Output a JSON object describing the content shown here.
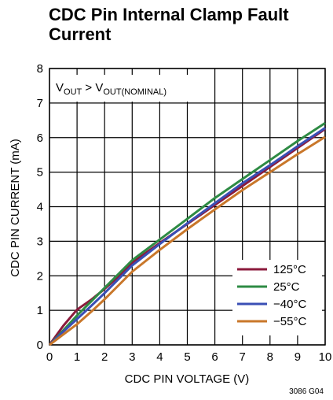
{
  "chart_data": {
    "type": "line",
    "title": "CDC Pin Internal Clamp Fault Current",
    "xlabel": "CDC PIN VOLTAGE (V)",
    "ylabel": "CDC PIN CURRENT (mA)",
    "xlim": [
      0,
      10
    ],
    "ylim": [
      0,
      8
    ],
    "xticks": [
      "0",
      "1",
      "2",
      "3",
      "4",
      "5",
      "6",
      "7",
      "8",
      "9",
      "10"
    ],
    "yticks": [
      "0",
      "1",
      "2",
      "3",
      "4",
      "5",
      "6",
      "7",
      "8"
    ],
    "grid": true,
    "legend_position": "bottom-right",
    "annotation": {
      "main": "V",
      "sub1": "OUT",
      "mid": " > V",
      "sub2": "OUT(NOMINAL)"
    },
    "figure_code": "3086 G04",
    "series": [
      {
        "name": "125°C",
        "color": "#8b1a3c",
        "x": [
          0,
          0.5,
          1,
          1.5,
          2,
          2.5,
          3,
          4,
          5,
          6,
          7,
          8,
          9,
          10
        ],
        "y": [
          0,
          0.55,
          1.02,
          1.3,
          1.62,
          1.98,
          2.38,
          2.95,
          3.5,
          4.05,
          4.6,
          5.15,
          5.7,
          6.25
        ]
      },
      {
        "name": "25°C",
        "color": "#2e8b44",
        "x": [
          0,
          0.5,
          1,
          1.5,
          2,
          2.5,
          3,
          4,
          5,
          6,
          7,
          8,
          9,
          10
        ],
        "y": [
          0,
          0.42,
          0.85,
          1.25,
          1.65,
          2.05,
          2.45,
          3.05,
          3.65,
          4.25,
          4.8,
          5.35,
          5.9,
          6.42
        ]
      },
      {
        "name": "−40°C",
        "color": "#3a4fb5",
        "x": [
          0,
          0.5,
          1,
          1.5,
          2,
          2.5,
          3,
          4,
          5,
          6,
          7,
          8,
          9,
          10
        ],
        "y": [
          0,
          0.38,
          0.75,
          1.12,
          1.5,
          1.9,
          2.3,
          2.92,
          3.52,
          4.1,
          4.68,
          5.2,
          5.75,
          6.28
        ]
      },
      {
        "name": "−55°C",
        "color": "#c9772a",
        "x": [
          0,
          0.5,
          1,
          1.5,
          2,
          2.5,
          3,
          4,
          5,
          6,
          7,
          8,
          9,
          10
        ],
        "y": [
          0,
          0.3,
          0.6,
          0.95,
          1.32,
          1.72,
          2.12,
          2.75,
          3.35,
          3.92,
          4.48,
          5.0,
          5.52,
          6.02
        ]
      }
    ]
  }
}
